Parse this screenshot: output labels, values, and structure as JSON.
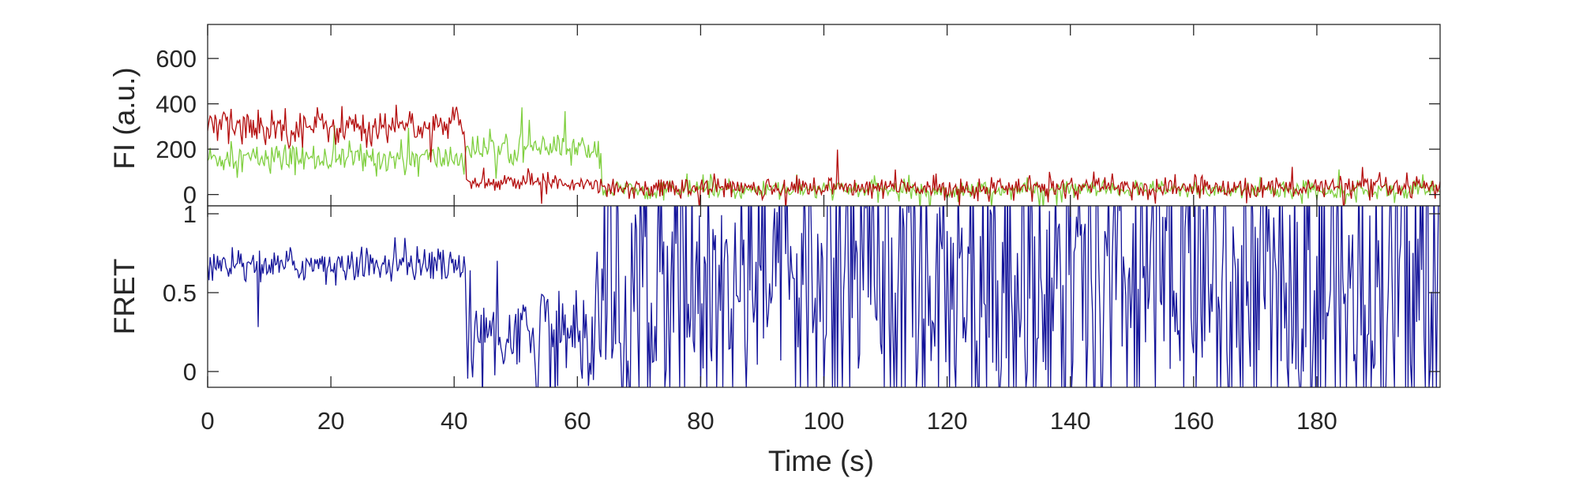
{
  "chart_data": [
    {
      "type": "line",
      "panel": "top",
      "title": "",
      "xlabel": "",
      "ylabel": "FI (a.u.)",
      "xlim": [
        0,
        200
      ],
      "ylim": [
        -50,
        750
      ],
      "yticks": [
        0,
        200,
        400,
        600
      ],
      "ytick_labels": [
        "0",
        "200",
        "400",
        "600"
      ],
      "grid": false,
      "legend": "none",
      "series": [
        {
          "color": "#7fcf3f",
          "segments": [
            {
              "x": [
                0,
                42
              ],
              "mean": 160,
              "noise": 55
            },
            {
              "x": [
                42,
                64
              ],
              "mean": 200,
              "noise": 50
            },
            {
              "x": [
                64,
                200
              ],
              "mean": 20,
              "noise": 35
            }
          ]
        },
        {
          "color": "#b40d0d",
          "segments": [
            {
              "x": [
                0,
                42
              ],
              "mean": 300,
              "noise": 70
            },
            {
              "x": [
                42,
                64
              ],
              "mean": 55,
              "noise": 30
            },
            {
              "x": [
                64,
                200
              ],
              "mean": 30,
              "noise": 40
            }
          ]
        }
      ]
    },
    {
      "type": "line",
      "panel": "bottom",
      "title": "",
      "xlabel": "Time (s)",
      "ylabel": "FRET",
      "xlim": [
        0,
        200
      ],
      "ylim": [
        -0.1,
        1.05
      ],
      "yticks": [
        0,
        0.5,
        1
      ],
      "ytick_labels": [
        "0",
        "0.5",
        "1"
      ],
      "xticks": [
        0,
        20,
        40,
        60,
        80,
        100,
        120,
        140,
        160,
        180
      ],
      "xtick_labels": [
        "0",
        "20",
        "40",
        "60",
        "80",
        "100",
        "120",
        "140",
        "160",
        "180"
      ],
      "grid": false,
      "legend": "none",
      "series": [
        {
          "color": "#14149a",
          "segments": [
            {
              "x": [
                0,
                42
              ],
              "mean": 0.68,
              "noise": 0.09
            },
            {
              "x": [
                42,
                64
              ],
              "mean": 0.25,
              "noise": 0.3
            },
            {
              "x": [
                64,
                200
              ],
              "mean": 0.45,
              "noise": 1.0
            }
          ]
        }
      ]
    }
  ]
}
